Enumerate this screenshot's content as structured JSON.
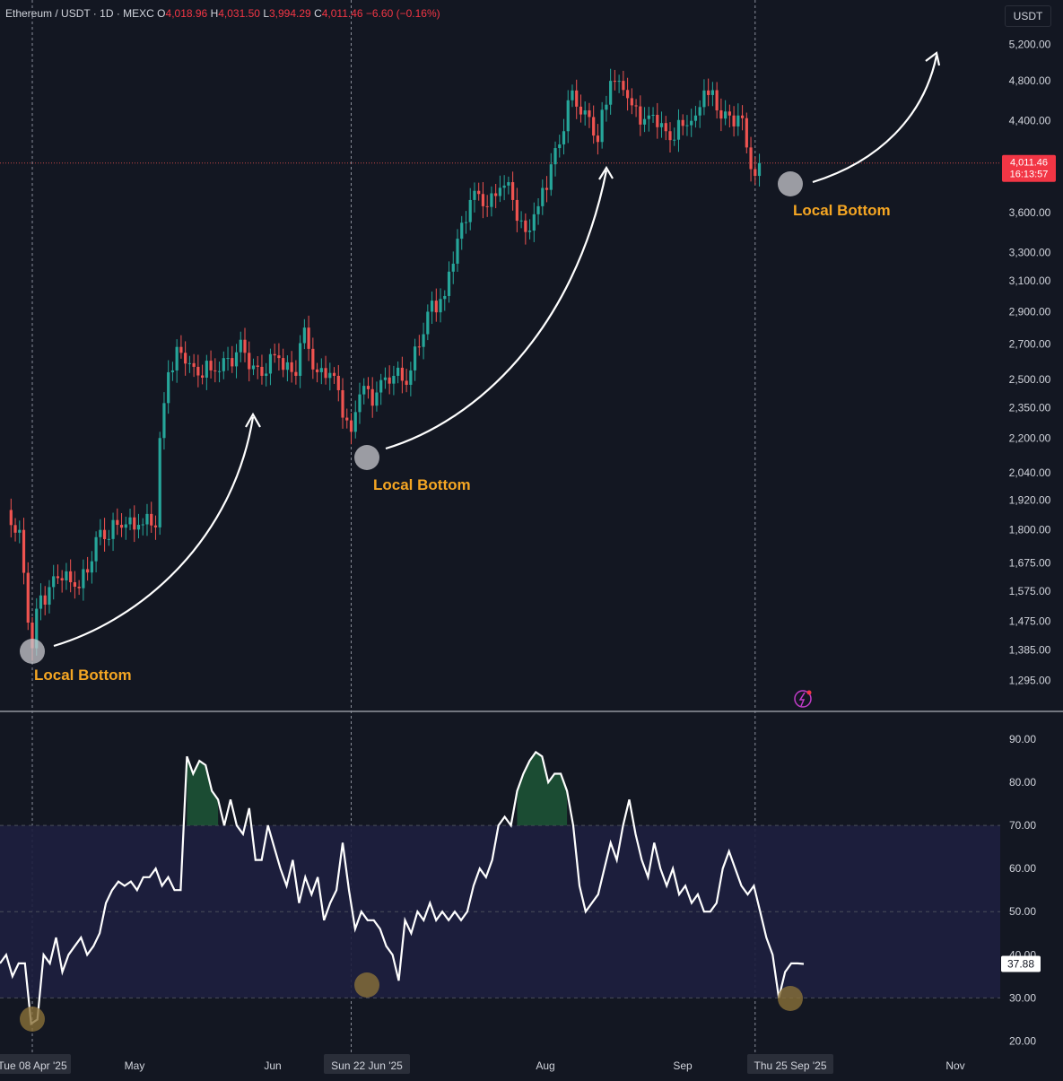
{
  "header": {
    "symbol": "Ethereum / USDT · 1D · MEXC",
    "o_label": "O",
    "o_value": "4,018.96",
    "h_label": "H",
    "h_value": "4,031.50",
    "l_label": "L",
    "l_value": "3,994.29",
    "c_label": "C",
    "c_value": "4,011.46",
    "change": "−6.60 (−0.16%)"
  },
  "unit_button": "USDT",
  "last_price_tag": {
    "price": "4,011.46",
    "countdown": "16:13:57"
  },
  "rsi_value_tag": "37.88",
  "annotations": [
    "Local Bottom",
    "Local Bottom",
    "Local Bottom"
  ],
  "colors": {
    "up": "#26a69a",
    "down": "#ef5350",
    "annotation": "#f5a623",
    "line": "#ffffff",
    "band": "#1e1f3f",
    "background": "#131722"
  },
  "chart_data": [
    {
      "type": "candlestick",
      "title": "Ethereum / USDT · 1D · MEXC",
      "y_scale": "log",
      "yticks": [
        "5,200.00",
        "4,800.00",
        "4,400.00",
        "3,600.00",
        "3,300.00",
        "3,100.00",
        "2,900.00",
        "2,700.00",
        "2,500.00",
        "2,350.00",
        "2,200.00",
        "2,040.00",
        "1,920.00",
        "1,800.00",
        "1,675.00",
        "1,575.00",
        "1,475.00",
        "1,385.00",
        "1,295.00"
      ],
      "x_ticks": [
        "Tue 08 Apr '25",
        "May",
        "Jun",
        "Sun 22 Jun '25",
        "Aug",
        "Sep",
        "Thu 25 Sep '25",
        "Nov"
      ],
      "ylim": [
        1230,
        5400
      ],
      "series": [
        {
          "date": "Apr 02",
          "close": 1880
        },
        {
          "date": "Apr 05",
          "close": 1800
        },
        {
          "date": "Apr 07",
          "close": 1470
        },
        {
          "date": "Apr 08",
          "close": 1390
        },
        {
          "date": "Apr 10",
          "close": 1560
        },
        {
          "date": "Apr 14",
          "close": 1620
        },
        {
          "date": "Apr 18",
          "close": 1590
        },
        {
          "date": "Apr 21",
          "close": 1640
        },
        {
          "date": "Apr 24",
          "close": 1800
        },
        {
          "date": "Apr 28",
          "close": 1820
        },
        {
          "date": "May 03",
          "close": 1820
        },
        {
          "date": "May 07",
          "close": 1810
        },
        {
          "date": "May 08",
          "close": 2200
        },
        {
          "date": "May 10",
          "close": 2540
        },
        {
          "date": "May 13",
          "close": 2650
        },
        {
          "date": "May 16",
          "close": 2570
        },
        {
          "date": "May 20",
          "close": 2550
        },
        {
          "date": "May 24",
          "close": 2620
        },
        {
          "date": "May 28",
          "close": 2650
        },
        {
          "date": "Jun 01",
          "close": 2520
        },
        {
          "date": "Jun 05",
          "close": 2620
        },
        {
          "date": "Jun 09",
          "close": 2520
        },
        {
          "date": "Jun 11",
          "close": 2800
        },
        {
          "date": "Jun 14",
          "close": 2540
        },
        {
          "date": "Jun 18",
          "close": 2520
        },
        {
          "date": "Jun 22",
          "close": 2230
        },
        {
          "date": "Jun 24",
          "close": 2420
        },
        {
          "date": "Jun 28",
          "close": 2430
        },
        {
          "date": "Jul 02",
          "close": 2520
        },
        {
          "date": "Jul 06",
          "close": 2550
        },
        {
          "date": "Jul 09",
          "close": 2760
        },
        {
          "date": "Jul 11",
          "close": 2970
        },
        {
          "date": "Jul 14",
          "close": 3000
        },
        {
          "date": "Jul 17",
          "close": 3400
        },
        {
          "date": "Jul 20",
          "close": 3700
        },
        {
          "date": "Jul 23",
          "close": 3650
        },
        {
          "date": "Jul 27",
          "close": 3800
        },
        {
          "date": "Jul 30",
          "close": 3700
        },
        {
          "date": "Aug 02",
          "close": 3450
        },
        {
          "date": "Aug 05",
          "close": 3650
        },
        {
          "date": "Aug 08",
          "close": 4000
        },
        {
          "date": "Aug 11",
          "close": 4300
        },
        {
          "date": "Aug 13",
          "close": 4700
        },
        {
          "date": "Aug 16",
          "close": 4500
        },
        {
          "date": "Aug 19",
          "close": 4200
        },
        {
          "date": "Aug 22",
          "close": 4800
        },
        {
          "date": "Aug 24",
          "close": 4800
        },
        {
          "date": "Aug 27",
          "close": 4550
        },
        {
          "date": "Aug 31",
          "close": 4450
        },
        {
          "date": "Sep 04",
          "close": 4300
        },
        {
          "date": "Sep 08",
          "close": 4350
        },
        {
          "date": "Sep 11",
          "close": 4450
        },
        {
          "date": "Sep 13",
          "close": 4700
        },
        {
          "date": "Sep 16",
          "close": 4500
        },
        {
          "date": "Sep 19",
          "close": 4450
        },
        {
          "date": "Sep 21",
          "close": 4450
        },
        {
          "date": "Sep 23",
          "close": 4150
        },
        {
          "date": "Sep 25",
          "close": 3900
        },
        {
          "date": "Sep 26",
          "close": 4011.46
        }
      ],
      "last_price": 4011.46
    },
    {
      "type": "line",
      "yticks": [
        "90.00",
        "80.00",
        "70.00",
        "60.00",
        "50.00",
        "40.00",
        "30.00",
        "20.00"
      ],
      "ylim": [
        18,
        95
      ],
      "bands": [
        30,
        50,
        70
      ],
      "series": [
        {
          "values": [
            38,
            40,
            35,
            38,
            38,
            24,
            25,
            40,
            38,
            44,
            36,
            40,
            42,
            44,
            40,
            42,
            45,
            52,
            55,
            57,
            56,
            57,
            55,
            58,
            58,
            60,
            56,
            58,
            55,
            55,
            86,
            82,
            85,
            84,
            78,
            76,
            70,
            76,
            70,
            68,
            74,
            62,
            62,
            70,
            65,
            60,
            56,
            62,
            52,
            58,
            54,
            58,
            48,
            52,
            55,
            66,
            55,
            46,
            50,
            48,
            48,
            46,
            42,
            40,
            34,
            48,
            45,
            50,
            48,
            52,
            48,
            50,
            48,
            50,
            48,
            50,
            56,
            60,
            58,
            62,
            70,
            72,
            70,
            78,
            82,
            85,
            87,
            86,
            80,
            82,
            82,
            78,
            70,
            56,
            50,
            52,
            54,
            60,
            66,
            62,
            70,
            76,
            68,
            62,
            58,
            66,
            60,
            56,
            60,
            54,
            56,
            52,
            54,
            50,
            50,
            52,
            60,
            64,
            60,
            56,
            54,
            56,
            50,
            44,
            40,
            30,
            36,
            38,
            38,
            37.88
          ]
        }
      ],
      "last_value": 37.88
    }
  ]
}
